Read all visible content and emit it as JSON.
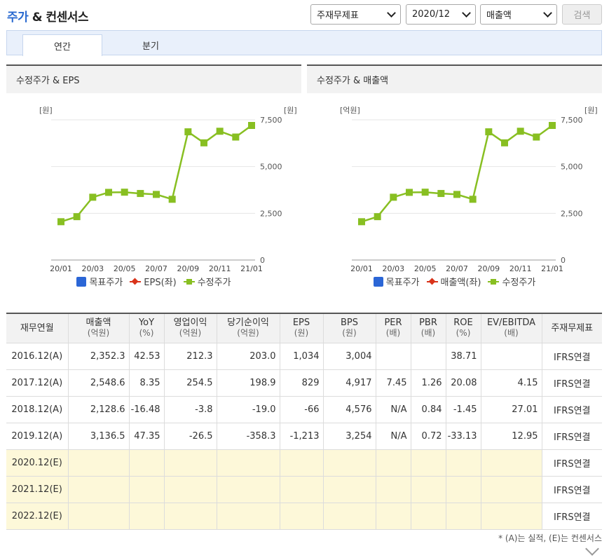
{
  "header": {
    "title_accent": "주가",
    "title_rest": " & 컨센서스",
    "select_standard": "주재무제표",
    "select_period": "2020/12",
    "select_item": "매출액",
    "search_label": "검색"
  },
  "tabs": [
    "연간",
    "분기"
  ],
  "charts": [
    {
      "title": "수정주가 & EPS",
      "left_unit": "[원]",
      "right_unit": "[원]",
      "legend": [
        "목표주가",
        "EPS(좌)",
        "수정주가"
      ]
    },
    {
      "title": "수정주가 & 매출액",
      "left_unit": "[억원]",
      "right_unit": "[원]",
      "legend": [
        "목표주가",
        "매출액(좌)",
        "수정주가"
      ]
    }
  ],
  "chart_data": [
    {
      "type": "line",
      "title": "수정주가 & EPS",
      "x": [
        "20/01",
        "20/02",
        "20/03",
        "20/04",
        "20/05",
        "20/06",
        "20/07",
        "20/08",
        "20/09",
        "20/10",
        "20/11",
        "20/12",
        "21/01"
      ],
      "x_tick_labels": [
        "20/01",
        "20/03",
        "20/05",
        "20/07",
        "20/09",
        "20/11",
        "21/01"
      ],
      "series": [
        {
          "name": "수정주가",
          "axis": "right",
          "color": "#88bf22",
          "values": [
            2050,
            2320,
            3360,
            3620,
            3630,
            3560,
            3510,
            3250,
            6860,
            6270,
            6890,
            6580,
            7200
          ]
        }
      ],
      "y_right_ticks": [
        "7,500",
        "5,000",
        "2,500",
        "0"
      ],
      "y_right_range": [
        0,
        7500
      ],
      "legend_position": "bottom",
      "grid": "horizontal"
    },
    {
      "type": "line",
      "title": "수정주가 & 매출액",
      "x": [
        "20/01",
        "20/02",
        "20/03",
        "20/04",
        "20/05",
        "20/06",
        "20/07",
        "20/08",
        "20/09",
        "20/10",
        "20/11",
        "20/12",
        "21/01"
      ],
      "x_tick_labels": [
        "20/01",
        "20/03",
        "20/05",
        "20/07",
        "20/09",
        "20/11",
        "21/01"
      ],
      "series": [
        {
          "name": "수정주가",
          "axis": "right",
          "color": "#88bf22",
          "values": [
            2050,
            2320,
            3360,
            3620,
            3630,
            3560,
            3510,
            3250,
            6860,
            6270,
            6890,
            6580,
            7200
          ]
        }
      ],
      "y_right_ticks": [
        "7,500",
        "5,000",
        "2,500",
        "0"
      ],
      "y_right_range": [
        0,
        7500
      ],
      "legend_position": "bottom",
      "grid": "horizontal"
    }
  ],
  "table": {
    "headers": [
      {
        "label": "재무연월",
        "sub": ""
      },
      {
        "label": "매출액",
        "sub": "(억원)"
      },
      {
        "label": "YoY",
        "sub": "(%)"
      },
      {
        "label": "영업이익",
        "sub": "(억원)"
      },
      {
        "label": "당기순이익",
        "sub": "(억원)"
      },
      {
        "label": "EPS",
        "sub": "(원)"
      },
      {
        "label": "BPS",
        "sub": "(원)"
      },
      {
        "label": "PER",
        "sub": "(배)"
      },
      {
        "label": "PBR",
        "sub": "(배)"
      },
      {
        "label": "ROE",
        "sub": "(%)"
      },
      {
        "label": "EV/EBITDA",
        "sub": "(배)"
      },
      {
        "label": "주재무제표",
        "sub": ""
      }
    ],
    "rows": [
      {
        "estimate": false,
        "cells": [
          "2016.12(A)",
          "2,352.3",
          "42.53",
          "212.3",
          "203.0",
          "1,034",
          "3,004",
          "",
          "",
          "38.71",
          "",
          "IFRS연결"
        ]
      },
      {
        "estimate": false,
        "cells": [
          "2017.12(A)",
          "2,548.6",
          "8.35",
          "254.5",
          "198.9",
          "829",
          "4,917",
          "7.45",
          "1.26",
          "20.08",
          "4.15",
          "IFRS연결"
        ]
      },
      {
        "estimate": false,
        "cells": [
          "2018.12(A)",
          "2,128.6",
          "-16.48",
          "-3.8",
          "-19.0",
          "-66",
          "4,576",
          "N/A",
          "0.84",
          "-1.45",
          "27.01",
          "IFRS연결"
        ]
      },
      {
        "estimate": false,
        "cells": [
          "2019.12(A)",
          "3,136.5",
          "47.35",
          "-26.5",
          "-358.3",
          "-1,213",
          "3,254",
          "N/A",
          "0.72",
          "-33.13",
          "12.95",
          "IFRS연결"
        ]
      },
      {
        "estimate": true,
        "cells": [
          "2020.12(E)",
          "",
          "",
          "",
          "",
          "",
          "",
          "",
          "",
          "",
          "",
          "IFRS연결"
        ]
      },
      {
        "estimate": true,
        "cells": [
          "2021.12(E)",
          "",
          "",
          "",
          "",
          "",
          "",
          "",
          "",
          "",
          "",
          "IFRS연결"
        ]
      },
      {
        "estimate": true,
        "cells": [
          "2022.12(E)",
          "",
          "",
          "",
          "",
          "",
          "",
          "",
          "",
          "",
          "",
          "IFRS연결"
        ]
      }
    ]
  },
  "footnote": "* (A)는 실적, (E)는 컨센서스"
}
